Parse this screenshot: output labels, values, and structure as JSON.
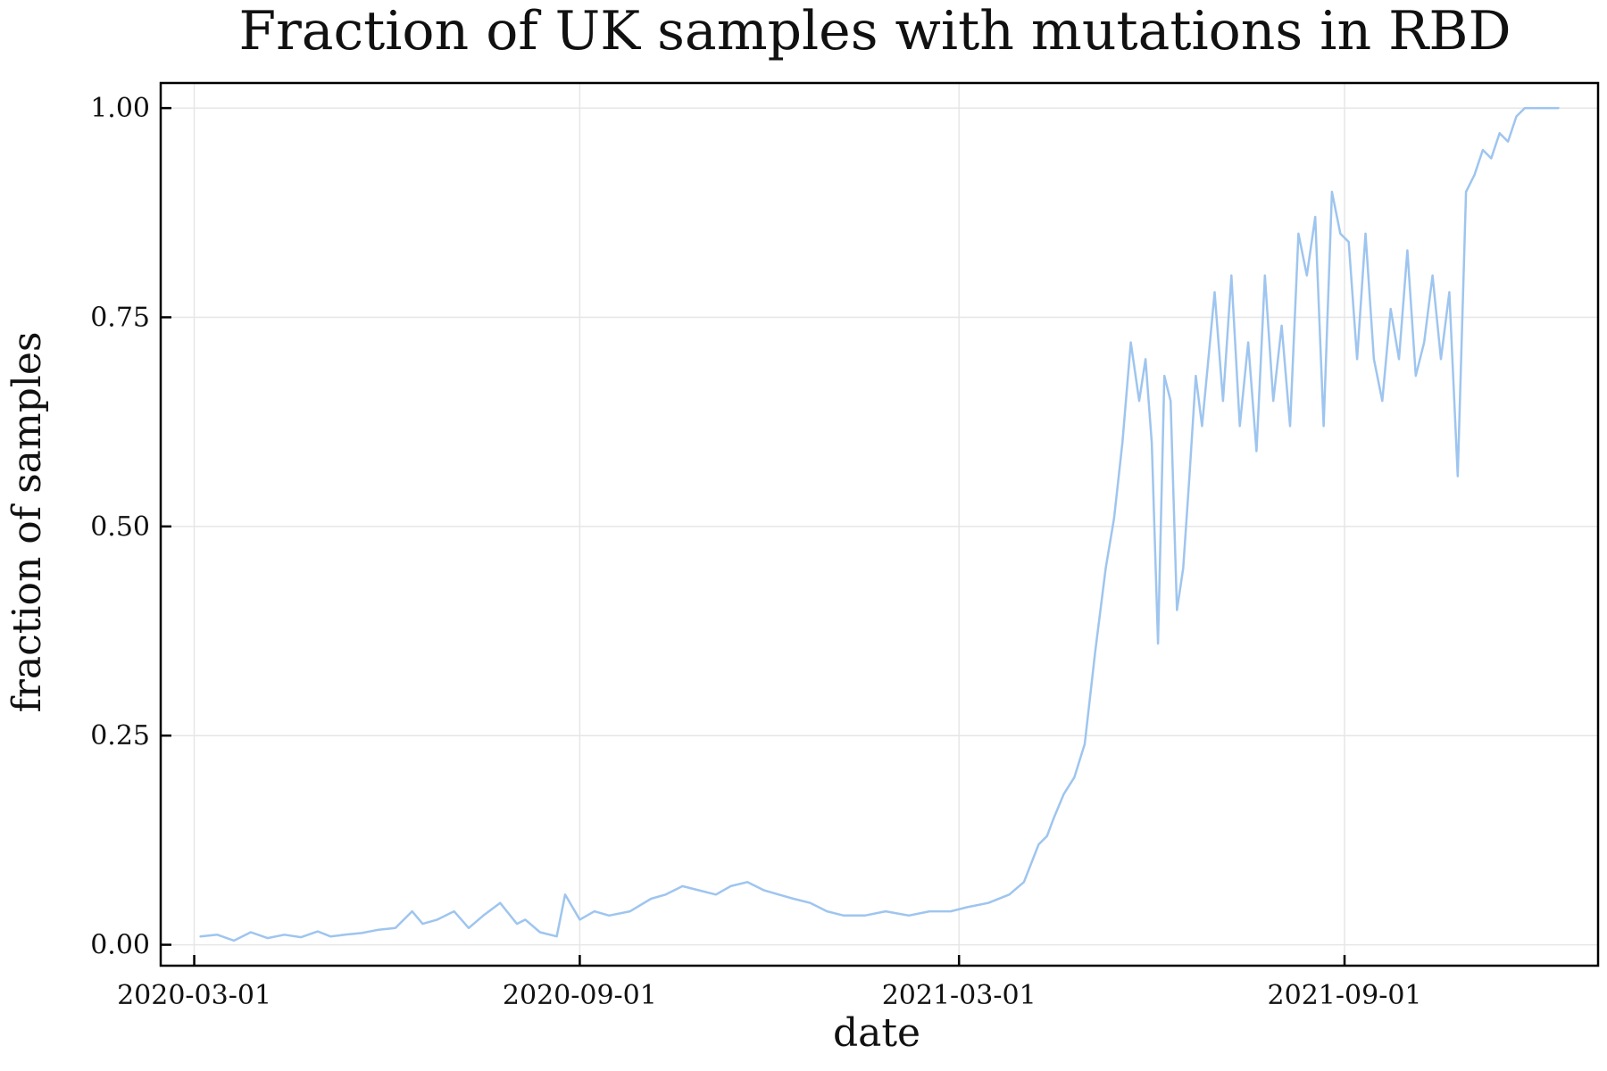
{
  "chart_data": {
    "type": "line",
    "title": "Fraction of UK samples with mutations in RBD",
    "xlabel": "date",
    "ylabel": "fraction of samples",
    "x_axis": {
      "type": "date",
      "range": [
        "2020-02-14",
        "2021-12-31"
      ],
      "ticks": [
        "2020-03-01",
        "2020-09-01",
        "2021-03-01",
        "2021-09-01"
      ]
    },
    "y_axis": {
      "range": [
        -0.025,
        1.03
      ],
      "ticks": [
        0.0,
        0.25,
        0.5,
        0.75,
        1.0
      ],
      "tick_labels": [
        "0.00",
        "0.25",
        "0.50",
        "0.75",
        "1.00"
      ]
    },
    "grid": true,
    "legend": "none",
    "series": [
      {
        "color": "#9ec5ef",
        "x": [
          "2020-03-04",
          "2020-03-12",
          "2020-03-20",
          "2020-03-28",
          "2020-04-05",
          "2020-04-13",
          "2020-04-21",
          "2020-04-29",
          "2020-05-05",
          "2020-05-12",
          "2020-05-20",
          "2020-05-28",
          "2020-06-05",
          "2020-06-13",
          "2020-06-18",
          "2020-06-25",
          "2020-07-03",
          "2020-07-10",
          "2020-07-17",
          "2020-07-25",
          "2020-08-02",
          "2020-08-06",
          "2020-08-13",
          "2020-08-21",
          "2020-08-25",
          "2020-09-01",
          "2020-09-08",
          "2020-09-15",
          "2020-09-25",
          "2020-10-05",
          "2020-10-12",
          "2020-10-20",
          "2020-10-28",
          "2020-11-05",
          "2020-11-12",
          "2020-11-20",
          "2020-11-28",
          "2020-12-05",
          "2020-12-12",
          "2020-12-20",
          "2020-12-28",
          "2021-01-05",
          "2021-01-15",
          "2021-01-25",
          "2021-02-05",
          "2021-02-15",
          "2021-02-25",
          "2021-03-05",
          "2021-03-15",
          "2021-03-25",
          "2021-04-01",
          "2021-04-08",
          "2021-04-12",
          "2021-04-15",
          "2021-04-20",
          "2021-04-25",
          "2021-04-30",
          "2021-05-05",
          "2021-05-10",
          "2021-05-14",
          "2021-05-18",
          "2021-05-22",
          "2021-05-26",
          "2021-05-29",
          "2021-06-01",
          "2021-06-04",
          "2021-06-07",
          "2021-06-10",
          "2021-06-13",
          "2021-06-16",
          "2021-06-19",
          "2021-06-22",
          "2021-06-25",
          "2021-06-28",
          "2021-07-01",
          "2021-07-05",
          "2021-07-09",
          "2021-07-13",
          "2021-07-17",
          "2021-07-21",
          "2021-07-25",
          "2021-07-29",
          "2021-08-02",
          "2021-08-06",
          "2021-08-10",
          "2021-08-14",
          "2021-08-18",
          "2021-08-22",
          "2021-08-26",
          "2021-08-30",
          "2021-09-03",
          "2021-09-07",
          "2021-09-11",
          "2021-09-15",
          "2021-09-19",
          "2021-09-23",
          "2021-09-27",
          "2021-10-01",
          "2021-10-05",
          "2021-10-09",
          "2021-10-13",
          "2021-10-17",
          "2021-10-21",
          "2021-10-25",
          "2021-10-29",
          "2021-11-02",
          "2021-11-06",
          "2021-11-10",
          "2021-11-14",
          "2021-11-18",
          "2021-11-22",
          "2021-11-26",
          "2021-11-30",
          "2021-12-04",
          "2021-12-08",
          "2021-12-12"
        ],
        "y": [
          0.01,
          0.012,
          0.005,
          0.015,
          0.008,
          0.012,
          0.009,
          0.016,
          0.01,
          0.012,
          0.014,
          0.018,
          0.02,
          0.04,
          0.025,
          0.03,
          0.04,
          0.02,
          0.035,
          0.05,
          0.025,
          0.03,
          0.015,
          0.01,
          0.06,
          0.03,
          0.04,
          0.035,
          0.04,
          0.055,
          0.06,
          0.07,
          0.065,
          0.06,
          0.07,
          0.075,
          0.065,
          0.06,
          0.055,
          0.05,
          0.04,
          0.035,
          0.035,
          0.04,
          0.035,
          0.04,
          0.04,
          0.045,
          0.05,
          0.06,
          0.075,
          0.12,
          0.13,
          0.15,
          0.18,
          0.2,
          0.24,
          0.35,
          0.45,
          0.51,
          0.6,
          0.72,
          0.65,
          0.7,
          0.6,
          0.36,
          0.68,
          0.65,
          0.4,
          0.45,
          0.56,
          0.68,
          0.62,
          0.7,
          0.78,
          0.65,
          0.8,
          0.62,
          0.72,
          0.59,
          0.8,
          0.65,
          0.74,
          0.62,
          0.85,
          0.8,
          0.87,
          0.62,
          0.9,
          0.85,
          0.84,
          0.7,
          0.85,
          0.7,
          0.65,
          0.76,
          0.7,
          0.83,
          0.68,
          0.72,
          0.8,
          0.7,
          0.78,
          0.56,
          0.9,
          0.92,
          0.95,
          0.94,
          0.97,
          0.96,
          0.99,
          1.0,
          1.0,
          1.0,
          1.0,
          1.0
        ]
      }
    ]
  }
}
